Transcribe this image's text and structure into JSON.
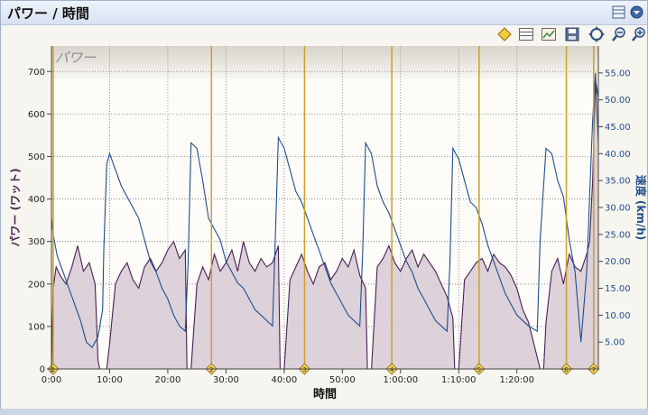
{
  "window": {
    "title": "パワー / 時間"
  },
  "toolbar": {
    "icons": [
      "marker-icon",
      "lap-list-icon",
      "chart-options-icon",
      "save-icon",
      "fit-icon",
      "zoom-out-icon",
      "zoom-in-icon"
    ]
  },
  "colors": {
    "power_fill": "#d9ccd6",
    "power_line": "#4a1f55",
    "speed_line": "#1f4e8c",
    "lap_line": "#c9a02a",
    "header_band": "#dedad2"
  },
  "chart_data": {
    "type": "area",
    "series_label": "パワー",
    "xlabel": "時間",
    "ylabel_left": "パワー (ワット)",
    "ylabel_right": "速度 (km/h)",
    "x_unit": "minutes",
    "xlim": [
      0,
      94
    ],
    "ylim_left": [
      0,
      760
    ],
    "ylim_right": [
      0,
      60
    ],
    "x_ticks": [
      0,
      10,
      20,
      30,
      40,
      50,
      60,
      70,
      80
    ],
    "x_tick_labels": [
      "0:00",
      "10:00",
      "20:00",
      "30:00",
      "40:00",
      "50:00",
      "1:00:00",
      "1:10:00",
      "1:20:00"
    ],
    "y_left_ticks": [
      0,
      100,
      200,
      300,
      400,
      500,
      600,
      700
    ],
    "y_right_ticks": [
      5,
      10,
      15,
      20,
      25,
      30,
      35,
      40,
      45,
      50,
      55
    ],
    "y_right_tick_labels": [
      "5.00",
      "10.00",
      "15.00",
      "20.00",
      "25.00",
      "30.00",
      "35.00",
      "40.00",
      "45.00",
      "50.00",
      "55.00"
    ],
    "grid": true,
    "laps": [
      {
        "label": "1",
        "x": 0.3
      },
      {
        "label": "2",
        "x": 27.5
      },
      {
        "label": "3",
        "x": 43.5
      },
      {
        "label": "4",
        "x": 58.5
      },
      {
        "label": "5",
        "x": 73.5
      },
      {
        "label": "6",
        "x": 88.5
      },
      {
        "label": "7",
        "x": 93.2
      }
    ],
    "power": {
      "name": "パワー",
      "x": [
        0.0,
        0.3,
        0.8,
        1.5,
        2.5,
        3.5,
        4.5,
        5.5,
        6.5,
        7.5,
        8.0,
        8.3,
        8.6,
        9.0,
        9.5,
        10.0,
        11.0,
        12.0,
        13.0,
        14.0,
        15.0,
        16.0,
        17.0,
        18.0,
        19.0,
        20.0,
        21.0,
        22.0,
        23.0,
        23.3,
        23.6,
        24.0,
        25.0,
        26.0,
        27.0,
        28.0,
        29.0,
        30.0,
        31.0,
        32.0,
        33.0,
        34.0,
        35.0,
        36.0,
        37.0,
        38.0,
        39.0,
        39.3,
        39.6,
        40.0,
        41.0,
        42.0,
        43.0,
        44.0,
        45.0,
        46.0,
        47.0,
        48.0,
        49.0,
        50.0,
        51.0,
        52.0,
        53.0,
        54.0,
        54.3,
        54.6,
        55.0,
        56.0,
        57.0,
        58.0,
        59.0,
        60.0,
        61.0,
        62.0,
        63.0,
        64.0,
        65.0,
        66.0,
        67.0,
        68.0,
        69.0,
        69.3,
        69.6,
        70.0,
        71.0,
        72.0,
        73.0,
        74.0,
        75.0,
        76.0,
        77.0,
        78.0,
        79.0,
        80.0,
        81.0,
        82.0,
        84.0,
        84.3,
        84.6,
        85.0,
        86.0,
        87.0,
        88.0,
        89.0,
        90.0,
        91.0,
        92.0,
        92.5,
        93.0,
        93.5,
        94.0
      ],
      "y": [
        0,
        190,
        240,
        220,
        200,
        240,
        290,
        230,
        250,
        200,
        20,
        0,
        0,
        0,
        0,
        60,
        200,
        230,
        250,
        210,
        190,
        240,
        260,
        230,
        250,
        280,
        300,
        260,
        280,
        0,
        0,
        0,
        200,
        240,
        210,
        270,
        230,
        250,
        280,
        230,
        300,
        250,
        230,
        260,
        240,
        250,
        290,
        0,
        0,
        0,
        210,
        240,
        270,
        230,
        200,
        240,
        250,
        210,
        230,
        260,
        240,
        280,
        220,
        190,
        0,
        0,
        0,
        240,
        260,
        290,
        250,
        230,
        260,
        280,
        240,
        270,
        250,
        230,
        200,
        170,
        120,
        0,
        0,
        0,
        210,
        230,
        250,
        260,
        230,
        270,
        250,
        240,
        220,
        190,
        140,
        110,
        0,
        0,
        0,
        110,
        230,
        260,
        200,
        270,
        240,
        230,
        270,
        300,
        440,
        680,
        640
      ]
    },
    "speed": {
      "name": "速度",
      "x": [
        0.0,
        0.3,
        1.0,
        2.0,
        3.0,
        4.0,
        5.0,
        6.0,
        7.0,
        8.0,
        8.8,
        9.0,
        9.5,
        10.0,
        11.0,
        12.0,
        13.0,
        14.0,
        15.0,
        16.0,
        17.0,
        18.0,
        19.0,
        20.0,
        21.0,
        22.0,
        23.0,
        23.5,
        24.0,
        25.0,
        26.0,
        27.0,
        28.0,
        29.0,
        30.0,
        31.0,
        32.0,
        33.0,
        34.0,
        35.0,
        36.0,
        37.0,
        38.0,
        38.5,
        39.0,
        40.0,
        41.0,
        42.0,
        43.0,
        44.0,
        45.0,
        46.0,
        47.0,
        48.0,
        49.0,
        50.0,
        51.0,
        52.0,
        53.0,
        53.5,
        54.0,
        55.0,
        56.0,
        57.0,
        58.0,
        59.0,
        60.0,
        61.0,
        62.0,
        63.0,
        64.0,
        65.0,
        66.0,
        67.0,
        68.0,
        68.5,
        69.0,
        70.0,
        71.0,
        72.0,
        73.0,
        74.0,
        75.0,
        76.0,
        77.0,
        78.0,
        79.0,
        80.0,
        81.0,
        82.0,
        83.5,
        84.0,
        85.0,
        86.0,
        87.0,
        88.0,
        88.5,
        89.0,
        90.0,
        91.0,
        92.0,
        92.5,
        93.0,
        93.5,
        94.0
      ],
      "y": [
        28,
        25,
        21,
        18,
        15,
        12,
        9,
        5,
        4,
        6,
        11,
        22,
        38,
        40,
        37,
        34,
        32,
        30,
        28,
        24,
        20,
        18,
        15,
        13,
        10,
        8,
        7,
        20,
        42,
        41,
        35,
        28,
        26,
        24,
        20,
        18,
        16,
        15,
        13,
        11,
        10,
        9,
        8,
        25,
        43,
        41,
        37,
        33,
        31,
        28,
        25,
        22,
        19,
        16,
        14,
        12,
        10,
        9,
        8,
        22,
        42,
        40,
        34,
        31,
        29,
        26,
        23,
        20,
        18,
        15,
        13,
        11,
        9,
        8,
        7,
        20,
        41,
        39,
        35,
        31,
        30,
        27,
        23,
        20,
        17,
        14,
        12,
        10,
        9,
        8,
        7,
        24,
        41,
        40,
        35,
        32,
        28,
        24,
        18,
        5,
        18,
        32,
        46,
        55,
        42
      ]
    }
  }
}
